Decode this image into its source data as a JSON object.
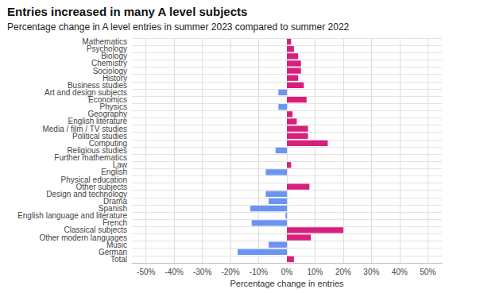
{
  "chart_data": {
    "type": "bar",
    "orientation": "horizontal",
    "title": "Entries increased in many A level subjects",
    "subtitle": "Percentage change in A level entries in summer 2023 compared to summer 2022",
    "xlabel": "Percentage change in entries",
    "categories": [
      "Mathematics",
      "Psychology",
      "Biology",
      "Chemistry",
      "Sociology",
      "History",
      "Business studies",
      "Art and design subjects",
      "Economics",
      "Physics",
      "Geography",
      "English literature",
      "Media / film / TV studies",
      "Political studies",
      "Computing",
      "Religious studies",
      "Further mathematics",
      "Law",
      "English",
      "Physical education",
      "Other subjects",
      "Design and technology",
      "Drama",
      "Spanish",
      "English language and literature",
      "French",
      "Classical subjects",
      "Other modern languages",
      "Music",
      "German",
      "Total"
    ],
    "values": [
      1.5,
      2.5,
      4,
      5,
      5,
      4,
      6,
      -3,
      7,
      -3,
      2,
      3.5,
      7.5,
      7.5,
      14.5,
      -4,
      0,
      1.5,
      -7.5,
      0,
      8,
      -7.5,
      -6.5,
      -13,
      -0.5,
      -12.5,
      20,
      8.5,
      -6.5,
      -17.5,
      2.5
    ],
    "colors": [
      "#d91f7c",
      "#d91f7c",
      "#d91f7c",
      "#d91f7c",
      "#d91f7c",
      "#d91f7c",
      "#d91f7c",
      "#6b93f2",
      "#d91f7c",
      "#6b93f2",
      "#d91f7c",
      "#d91f7c",
      "#d91f7c",
      "#d91f7c",
      "#d91f7c",
      "#6b93f2",
      "#d91f7c",
      "#d91f7c",
      "#6b93f2",
      "#d91f7c",
      "#d91f7c",
      "#6b93f2",
      "#6b93f2",
      "#6b93f2",
      "#6b93f2",
      "#6b93f2",
      "#d91f7c",
      "#d91f7c",
      "#6b93f2",
      "#6b93f2",
      "#d91f7c"
    ],
    "xlim": [
      -55,
      55
    ],
    "xticks": [
      {
        "value": -50,
        "label": "-50%"
      },
      {
        "value": -40,
        "label": "-40%"
      },
      {
        "value": -30,
        "label": "-30%"
      },
      {
        "value": -20,
        "label": "-20%"
      },
      {
        "value": -10,
        "label": "-10%"
      },
      {
        "value": 0,
        "label": "0%"
      },
      {
        "value": 10,
        "label": "10%"
      },
      {
        "value": 20,
        "label": "20%"
      },
      {
        "value": 30,
        "label": "30%"
      },
      {
        "value": 40,
        "label": "40%"
      },
      {
        "value": 50,
        "label": "50%"
      }
    ],
    "grid": true
  }
}
